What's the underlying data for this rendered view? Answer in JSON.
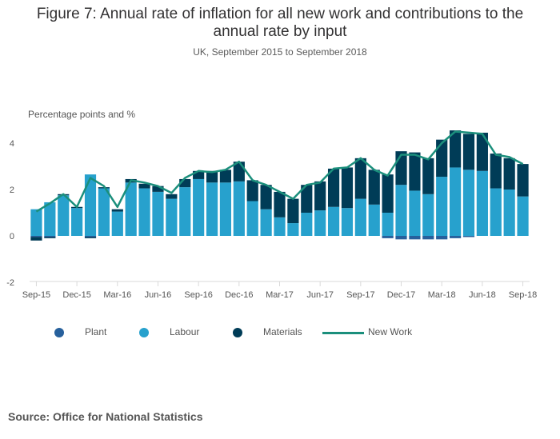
{
  "header": {
    "title": "Figure 7: Annual rate of inflation for all new work and contributions to the annual rate by input",
    "subtitle": "UK, September 2015 to September 2018"
  },
  "footer": {
    "source": "Source: Office for National Statistics"
  },
  "colors": {
    "plant": "#27609c",
    "labour": "#27a1cd",
    "materials": "#003c57",
    "new_work": "#1b8f7c",
    "axis": "#d9d9d9"
  },
  "chart_data": {
    "type": "bar",
    "stacked": true,
    "unit_label": "Percentage points and %",
    "ylim": [
      -2,
      5
    ],
    "yticks": [
      -2,
      0,
      2,
      4
    ],
    "grid": false,
    "legend_position": "bottom",
    "x_tick_labels": [
      {
        "index": 0,
        "label": "Sep-15"
      },
      {
        "index": 3,
        "label": "Dec-15"
      },
      {
        "index": 6,
        "label": "Mar-16"
      },
      {
        "index": 9,
        "label": "Jun-16"
      },
      {
        "index": 12,
        "label": "Sep-16"
      },
      {
        "index": 15,
        "label": "Dec-16"
      },
      {
        "index": 18,
        "label": "Mar-17"
      },
      {
        "index": 21,
        "label": "Jun-17"
      },
      {
        "index": 24,
        "label": "Sep-17"
      },
      {
        "index": 27,
        "label": "Dec-17"
      },
      {
        "index": 30,
        "label": "Mar-18"
      },
      {
        "index": 33,
        "label": "Jun-18"
      },
      {
        "index": 36,
        "label": "Sep-18"
      }
    ],
    "categories": [
      "Sep-15",
      "Oct-15",
      "Nov-15",
      "Dec-15",
      "Jan-16",
      "Feb-16",
      "Mar-16",
      "Apr-16",
      "May-16",
      "Jun-16",
      "Jul-16",
      "Aug-16",
      "Sep-16",
      "Oct-16",
      "Nov-16",
      "Dec-16",
      "Jan-17",
      "Feb-17",
      "Mar-17",
      "Apr-17",
      "May-17",
      "Jun-17",
      "Jul-17",
      "Aug-17",
      "Sep-17",
      "Oct-17",
      "Nov-17",
      "Dec-17",
      "Jan-18",
      "Feb-18",
      "Mar-18",
      "Apr-18",
      "May-18",
      "Jun-18",
      "Jul-18",
      "Aug-18",
      "Sep-18"
    ],
    "series": [
      {
        "name": "Plant",
        "key": "plant",
        "kind": "bar",
        "values": [
          -0.05,
          -0.05,
          0,
          0,
          -0.05,
          0,
          0,
          0,
          0,
          0,
          0,
          0,
          0,
          0,
          0,
          0,
          0,
          0,
          0,
          0,
          0,
          0,
          0,
          0,
          0,
          0,
          -0.1,
          -0.15,
          -0.15,
          -0.15,
          -0.15,
          -0.1,
          -0.05,
          0,
          0,
          0,
          0
        ]
      },
      {
        "name": "Labour",
        "key": "labour",
        "kind": "bar",
        "values": [
          1.15,
          1.45,
          1.75,
          1.2,
          2.65,
          2.05,
          1.05,
          2.3,
          2.05,
          1.9,
          1.6,
          2.1,
          2.45,
          2.3,
          2.3,
          2.35,
          1.5,
          1.15,
          0.8,
          0.55,
          1.0,
          1.1,
          1.25,
          1.2,
          1.6,
          1.35,
          1.0,
          2.2,
          1.95,
          1.8,
          2.55,
          2.95,
          2.85,
          2.8,
          2.05,
          2.0,
          1.7
        ]
      },
      {
        "name": "Materials",
        "key": "materials",
        "kind": "bar",
        "values": [
          -0.15,
          -0.05,
          0.05,
          0.05,
          -0.05,
          0.05,
          0.1,
          0.15,
          0.2,
          0.25,
          0.2,
          0.35,
          0.35,
          0.5,
          0.55,
          0.85,
          0.9,
          1.05,
          1.1,
          1.05,
          1.2,
          1.25,
          1.65,
          1.75,
          1.75,
          1.5,
          1.65,
          1.45,
          1.65,
          1.55,
          1.6,
          1.6,
          1.55,
          1.65,
          1.5,
          1.35,
          1.4
        ]
      },
      {
        "name": "New Work",
        "key": "new_work",
        "kind": "line",
        "values": [
          1.05,
          1.4,
          1.8,
          1.25,
          2.5,
          2.15,
          1.25,
          2.4,
          2.3,
          2.15,
          1.85,
          2.5,
          2.8,
          2.75,
          2.85,
          3.2,
          2.4,
          2.2,
          1.9,
          1.6,
          2.2,
          2.3,
          2.9,
          2.95,
          3.35,
          2.85,
          2.6,
          3.5,
          3.5,
          3.3,
          4.0,
          4.5,
          4.45,
          4.4,
          3.5,
          3.4,
          3.1
        ]
      }
    ]
  }
}
